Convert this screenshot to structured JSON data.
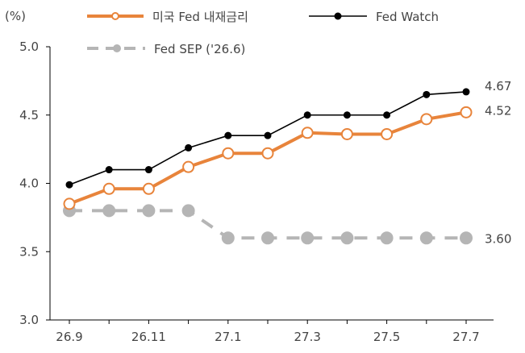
{
  "chart_data": {
    "type": "line",
    "yunit": "(%)",
    "categories": [
      "26.9",
      "26.10",
      "26.11",
      "26.12",
      "27.1",
      "27.2",
      "27.3",
      "27.4",
      "27.5",
      "27.6",
      "27.7"
    ],
    "x_tick_labels": [
      "26.9",
      "26.11",
      "27.1",
      "27.3",
      "27.5",
      "27.7"
    ],
    "y_ticks": [
      "3.0",
      "3.5",
      "4.0",
      "4.5",
      "5.0"
    ],
    "ylim": [
      3.0,
      5.0
    ],
    "legend_placement": "top",
    "series": [
      {
        "name": "미국 Fed 내재금리",
        "color": "#e8843b",
        "marker": "hollow-circle",
        "style": "solid",
        "values": [
          3.85,
          3.96,
          3.96,
          4.12,
          4.22,
          4.22,
          4.37,
          4.36,
          4.36,
          4.47,
          4.52
        ],
        "end_label": "4.52"
      },
      {
        "name": "Fed Watch",
        "color": "#000000",
        "marker": "filled-circle",
        "style": "solid",
        "values": [
          3.99,
          4.1,
          4.1,
          4.26,
          4.35,
          4.35,
          4.5,
          4.5,
          4.5,
          4.65,
          4.67
        ],
        "end_label": "4.67"
      },
      {
        "name": "Fed SEP ('26.6)",
        "color": "#b5b5b5",
        "marker": "filled-circle",
        "style": "dashed",
        "values": [
          3.8,
          3.8,
          3.8,
          3.8,
          3.6,
          3.6,
          3.6,
          3.6,
          3.6,
          3.6,
          3.6
        ],
        "end_label": "3.60"
      }
    ]
  }
}
